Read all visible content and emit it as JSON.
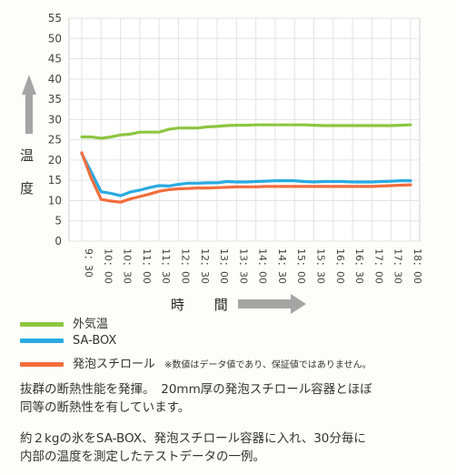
{
  "chart_data": {
    "type": "line",
    "title": "",
    "ylabel_chars": [
      "温",
      "度"
    ],
    "xlabel": "時 間",
    "ylim": [
      0,
      55
    ],
    "yticks": [
      0,
      5,
      10,
      15,
      20,
      25,
      30,
      35,
      40,
      45,
      50,
      55
    ],
    "grid": true,
    "categories": [
      "9：30",
      "10：00",
      "10：30",
      "11：00",
      "11：30",
      "12：00",
      "12：30",
      "13：00",
      "13：30",
      "14：00",
      "14：30",
      "15：00",
      "15：30",
      "16：00",
      "16：30",
      "17：00",
      "17：30",
      "18：00"
    ],
    "series": [
      {
        "name": "外気温",
        "color": "#8cc63f",
        "x": [
          0,
          0.5,
          1,
          1.5,
          2,
          2.5,
          3,
          3.5,
          4,
          4.5,
          5,
          5.5,
          6,
          6.5,
          7,
          7.5,
          8,
          8.5,
          9,
          9.5,
          10,
          10.5,
          11,
          11.5,
          12,
          12.5,
          13,
          13.5,
          14,
          14.5,
          15,
          15.5,
          16,
          16.5,
          17
        ],
        "values": [
          25.7,
          25.7,
          25.4,
          25.7,
          26.2,
          26.4,
          26.9,
          26.9,
          26.9,
          27.6,
          27.9,
          27.9,
          27.9,
          28.2,
          28.3,
          28.5,
          28.6,
          28.6,
          28.7,
          28.7,
          28.7,
          28.7,
          28.7,
          28.7,
          28.6,
          28.5,
          28.5,
          28.5,
          28.5,
          28.5,
          28.5,
          28.5,
          28.5,
          28.6,
          28.7
        ]
      },
      {
        "name": "SA-BOX",
        "color": "#29abe2",
        "x": [
          0,
          0.5,
          1,
          1.5,
          2,
          2.5,
          3,
          3.5,
          4,
          4.5,
          5,
          5.5,
          6,
          6.5,
          7,
          7.5,
          8,
          8.5,
          9,
          9.5,
          10,
          10.5,
          11,
          11.5,
          12,
          12.5,
          13,
          13.5,
          14,
          14.5,
          15,
          15.5,
          16,
          16.5,
          17
        ],
        "values": [
          21.6,
          17.0,
          12.2,
          11.8,
          11.2,
          12.1,
          12.6,
          13.2,
          13.7,
          13.6,
          14.0,
          14.3,
          14.3,
          14.4,
          14.4,
          14.7,
          14.6,
          14.6,
          14.7,
          14.8,
          14.9,
          14.9,
          14.9,
          14.7,
          14.6,
          14.7,
          14.7,
          14.7,
          14.6,
          14.6,
          14.6,
          14.7,
          14.8,
          14.9,
          14.9
        ]
      },
      {
        "name": "発泡スチロール",
        "color": "#f26d3d",
        "x": [
          0,
          0.5,
          1,
          1.5,
          2,
          2.5,
          3,
          3.5,
          4,
          4.5,
          5,
          5.5,
          6,
          6.5,
          7,
          7.5,
          8,
          8.5,
          9,
          9.5,
          10,
          10.5,
          11,
          11.5,
          12,
          12.5,
          13,
          13.5,
          14,
          14.5,
          15,
          15.5,
          16,
          16.5,
          17
        ],
        "values": [
          21.8,
          15.5,
          10.3,
          9.9,
          9.6,
          10.4,
          11.0,
          11.6,
          12.3,
          12.7,
          12.9,
          13.0,
          13.1,
          13.1,
          13.2,
          13.3,
          13.4,
          13.4,
          13.4,
          13.5,
          13.5,
          13.5,
          13.5,
          13.5,
          13.5,
          13.5,
          13.5,
          13.5,
          13.5,
          13.5,
          13.5,
          13.6,
          13.7,
          13.8,
          13.9
        ]
      }
    ]
  },
  "legend": {
    "items": [
      "外気温",
      "SA-BOX",
      "発泡スチロール"
    ],
    "note": "※数値はデータ値であり、保証値ではありません。"
  },
  "text": {
    "para1_line1": "抜群の断熱性能を発揮。　20mm厚の発泡スチロール容器とほぼ",
    "para1_line2": "同等の断熱性を有しています。",
    "para2_line1": "約２kgの氷をSA-BOX、発泡スチロール容器に入れ、30分毎に",
    "para2_line2": "内部の温度を測定したテストデータの一例。"
  },
  "colors": {
    "arrow": "#a0a0a0",
    "grid": "#e3e3e3"
  }
}
